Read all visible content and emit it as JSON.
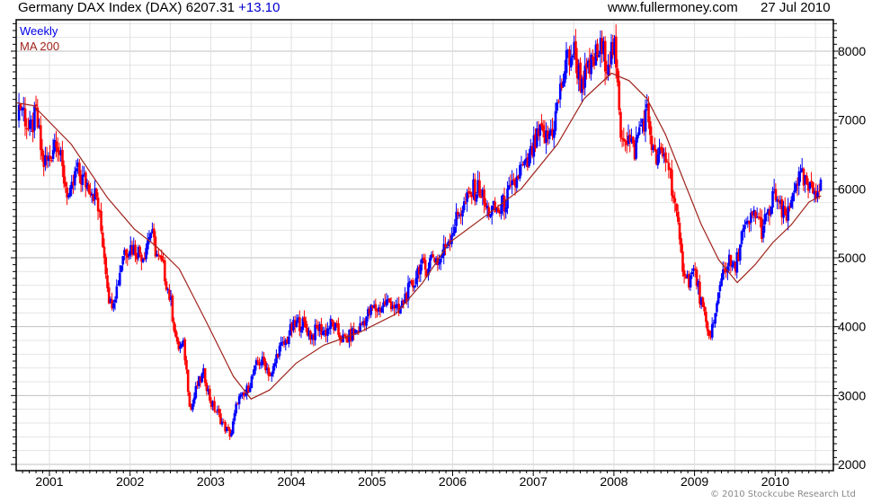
{
  "header": {
    "title": "Germany DAX Index (DAX) 6207.31",
    "change": "+13.10",
    "site": "www.fullermoney.com",
    "date": "27 Jul 2010"
  },
  "legend": {
    "series1": "Weekly",
    "series2": "MA 200"
  },
  "footer": {
    "copyright": "© 2010 Stockcube Research Ltd"
  },
  "colors": {
    "up": "#0000ff",
    "down": "#ff0000",
    "ma": "#a0231c",
    "grid_major": "#c0c0c0",
    "grid_minor": "#e4e4e4"
  },
  "chart_data": {
    "type": "candlestick",
    "title": "Germany DAX Index (DAX)",
    "xlabel": "",
    "ylabel": "",
    "xlim": [
      2000.59,
      2010.73
    ],
    "ylim": [
      1910,
      8455
    ],
    "x_ticks": [
      "2001",
      "2002",
      "2003",
      "2004",
      "2005",
      "2006",
      "2007",
      "2008",
      "2009",
      "2010"
    ],
    "y_ticks": [
      "2000",
      "3000",
      "4000",
      "5000",
      "6000",
      "7000",
      "8000"
    ],
    "grid": true,
    "legend_position": "top-left",
    "monthly_closes": {
      "start": "2000-07",
      "values": [
        7200,
        7190,
        6798,
        7077,
        6372,
        6434,
        6795,
        6208,
        5829,
        6265,
        6123,
        6058,
        5861,
        5188,
        4308,
        4560,
        5103,
        5160,
        5108,
        5039,
        5398,
        5041,
        4818,
        4382,
        3700,
        3713,
        2769,
        3153,
        3320,
        2893,
        2747,
        2547,
        2424,
        2942,
        2983,
        3221,
        3487,
        3485,
        3257,
        3656,
        3746,
        3965,
        4058,
        4018,
        3856,
        3985,
        3921,
        4053,
        3895,
        3785,
        3893,
        3960,
        4126,
        4256,
        4254,
        4350,
        4349,
        4185,
        4460,
        4587,
        4887,
        4830,
        5044,
        4929,
        5193,
        5408,
        5674,
        5796,
        5970,
        6009,
        5692,
        5683,
        5682,
        5860,
        6004,
        6269,
        6309,
        6597,
        6789,
        6715,
        6917,
        7409,
        7883,
        8007,
        7584,
        7638,
        7862,
        8019,
        7870,
        8067,
        6851,
        6748,
        6535,
        6949,
        7096,
        6418,
        6479,
        6422,
        5831,
        4988,
        4669,
        4810,
        4338,
        3843,
        4085,
        4770,
        4941,
        4809,
        5332,
        5458,
        5675,
        5415,
        5625,
        5957,
        5608,
        5598,
        6154,
        6136,
        5964,
        5966,
        6207
      ]
    },
    "ma200": [
      [
        2000.6,
        7250
      ],
      [
        2000.8,
        7210
      ],
      [
        2001.27,
        6650
      ],
      [
        2001.72,
        5870
      ],
      [
        2002.05,
        5420
      ],
      [
        2002.33,
        5160
      ],
      [
        2002.61,
        4840
      ],
      [
        2002.95,
        4060
      ],
      [
        2003.28,
        3280
      ],
      [
        2003.5,
        2950
      ],
      [
        2003.73,
        3080
      ],
      [
        2004.06,
        3470
      ],
      [
        2004.4,
        3730
      ],
      [
        2004.85,
        3920
      ],
      [
        2005.29,
        4180
      ],
      [
        2005.63,
        4640
      ],
      [
        2005.96,
        5220
      ],
      [
        2006.41,
        5610
      ],
      [
        2006.85,
        6000
      ],
      [
        2007.3,
        6650
      ],
      [
        2007.63,
        7310
      ],
      [
        2007.97,
        7680
      ],
      [
        2008.19,
        7570
      ],
      [
        2008.41,
        7310
      ],
      [
        2008.64,
        6790
      ],
      [
        2008.86,
        6140
      ],
      [
        2009.08,
        5490
      ],
      [
        2009.3,
        4970
      ],
      [
        2009.53,
        4640
      ],
      [
        2009.75,
        4900
      ],
      [
        2009.97,
        5220
      ],
      [
        2010.2,
        5480
      ],
      [
        2010.42,
        5810
      ],
      [
        2010.57,
        5900
      ]
    ]
  }
}
